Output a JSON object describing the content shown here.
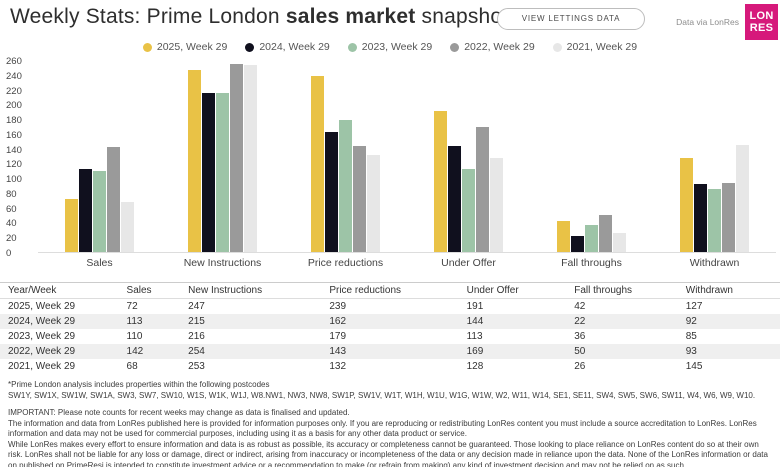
{
  "header": {
    "title_prefix": "Weekly Stats: Prime London ",
    "title_bold": "sales market",
    "title_suffix": " snapshot",
    "button_label": "VIEW LETTINGS DATA",
    "data_via": "Data via LonRes",
    "logo_line1": "LON",
    "logo_line2": "RES",
    "logo_color": "#D6197B"
  },
  "chart_data": {
    "type": "bar",
    "categories": [
      "Sales",
      "New Instructions",
      "Price reductions",
      "Under Offer",
      "Fall throughs",
      "Withdrawn"
    ],
    "series": [
      {
        "name": "2025, Week 29",
        "color": "#E9C246",
        "values": [
          72,
          247,
          239,
          191,
          42,
          127
        ]
      },
      {
        "name": "2024, Week 29",
        "color": "#10101E",
        "values": [
          113,
          215,
          162,
          144,
          22,
          92
        ]
      },
      {
        "name": "2023, Week 29",
        "color": "#9DC4A7",
        "values": [
          110,
          216,
          179,
          113,
          36,
          85
        ]
      },
      {
        "name": "2022, Week 29",
        "color": "#9A9A9A",
        "values": [
          142,
          254,
          143,
          169,
          50,
          93
        ]
      },
      {
        "name": "2021, Week 29",
        "color": "#E7E7E7",
        "values": [
          68,
          253,
          132,
          128,
          26,
          145
        ]
      }
    ],
    "ylim": [
      0,
      260
    ],
    "ytick_step": 20,
    "grid": false,
    "legend_position": "top"
  },
  "table": {
    "headers": [
      "Year/Week",
      "Sales",
      "New Instructions",
      "Price reductions",
      "Under Offer",
      "Fall throughs",
      "Withdrawn"
    ],
    "rows": [
      [
        "2025, Week 29",
        "72",
        "247",
        "239",
        "191",
        "42",
        "127"
      ],
      [
        "2024, Week 29",
        "113",
        "215",
        "162",
        "144",
        "22",
        "92"
      ],
      [
        "2023, Week 29",
        "110",
        "216",
        "179",
        "113",
        "36",
        "85"
      ],
      [
        "2022, Week 29",
        "142",
        "254",
        "143",
        "169",
        "50",
        "93"
      ],
      [
        "2021, Week 29",
        "68",
        "253",
        "132",
        "128",
        "26",
        "145"
      ]
    ]
  },
  "footnotes": {
    "postcode_note": "*Prime London analysis includes properties within the following postcodes",
    "postcodes": "SW1Y, SW1X, SW1W, SW1A, SW3, SW7, SW10, W1S, W1K, W1J, W8.NW1, NW3, NW8, SW1P, SW1V, W1T, W1H, W1U, W1G, W1W, W2, W11, W14, SE1, SE11, SW4, SW5, SW6, SW11, W4, W6, W9, W10.",
    "important": "IMPORTANT: Please note counts for recent weeks may change as data is finalised and updated.",
    "disclaimer1": "The information and data from LonRes published here is provided for information purposes only. If you are reproducing or redistributing LonRes content you must include a source accreditation to LonRes. LonRes information and data may not be used for commercial purposes, including using it as a basis for any other data product or service.",
    "disclaimer2": "While LonRes makes every effort to ensure information and data is as robust as possible, its accuracy or completeness cannot be guaranteed. Those looking to place reliance on LonRes content do so at their own risk. LonRes shall not be liable for any loss or damage, direct or indirect, arising from inaccuracy or incompleteness of the data or any decision made in reliance upon the data. None of the LonRes information or data on published on PrimeResi is intended to constitute investment advice or a recommendation to make (or refrain from making) any kind of investment decision and may not be relied on as such."
  }
}
